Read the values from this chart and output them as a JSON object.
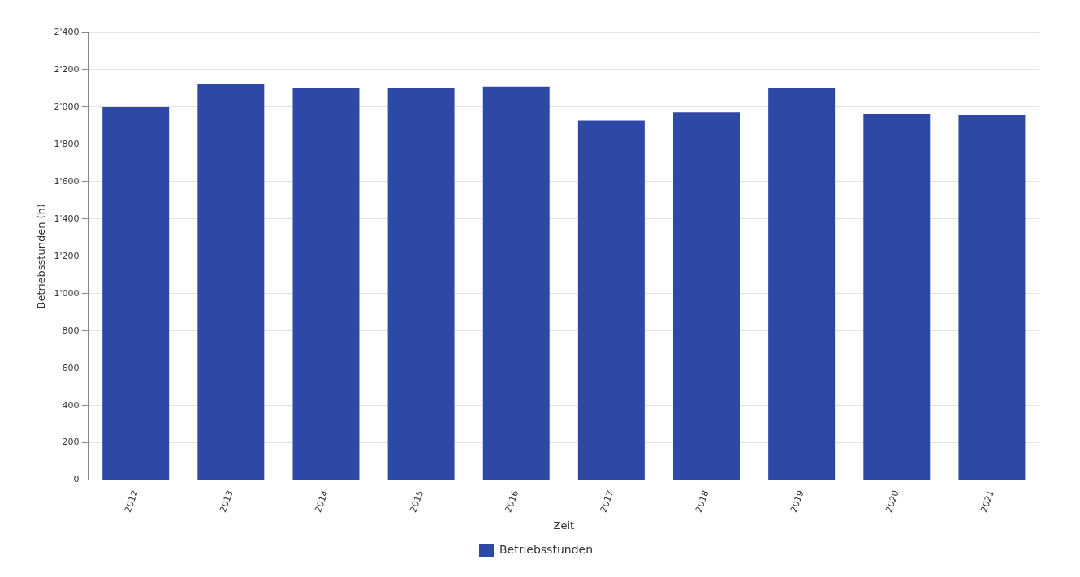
{
  "chart_data": {
    "type": "bar",
    "xlabel": "Zeit",
    "ylabel": "Betriebsstunden (h)",
    "categories": [
      "2012",
      "2013",
      "2014",
      "2015",
      "2016",
      "2017",
      "2018",
      "2019",
      "2020",
      "2021"
    ],
    "series": [
      {
        "name": "Betriebsstunden",
        "color": "#2e48a6",
        "values": [
          2000,
          2122,
          2104,
          2104,
          2110,
          1928,
          1973,
          2102,
          1961,
          1956
        ]
      }
    ],
    "ylim": [
      0,
      2400
    ],
    "yticks": [
      0,
      200,
      400,
      600,
      800,
      {
        "value": 1000,
        "label": "1'000"
      },
      {
        "value": 1200,
        "label": "1'200"
      },
      {
        "value": 1400,
        "label": "1'400"
      },
      {
        "value": 1600,
        "label": "1'600"
      },
      {
        "value": 1800,
        "label": "1'800"
      },
      {
        "value": 2000,
        "label": "2'000"
      },
      {
        "value": 2200,
        "label": "2'200"
      },
      {
        "value": 2400,
        "label": "2'400"
      }
    ],
    "grid": "y",
    "legend": "bottom"
  }
}
